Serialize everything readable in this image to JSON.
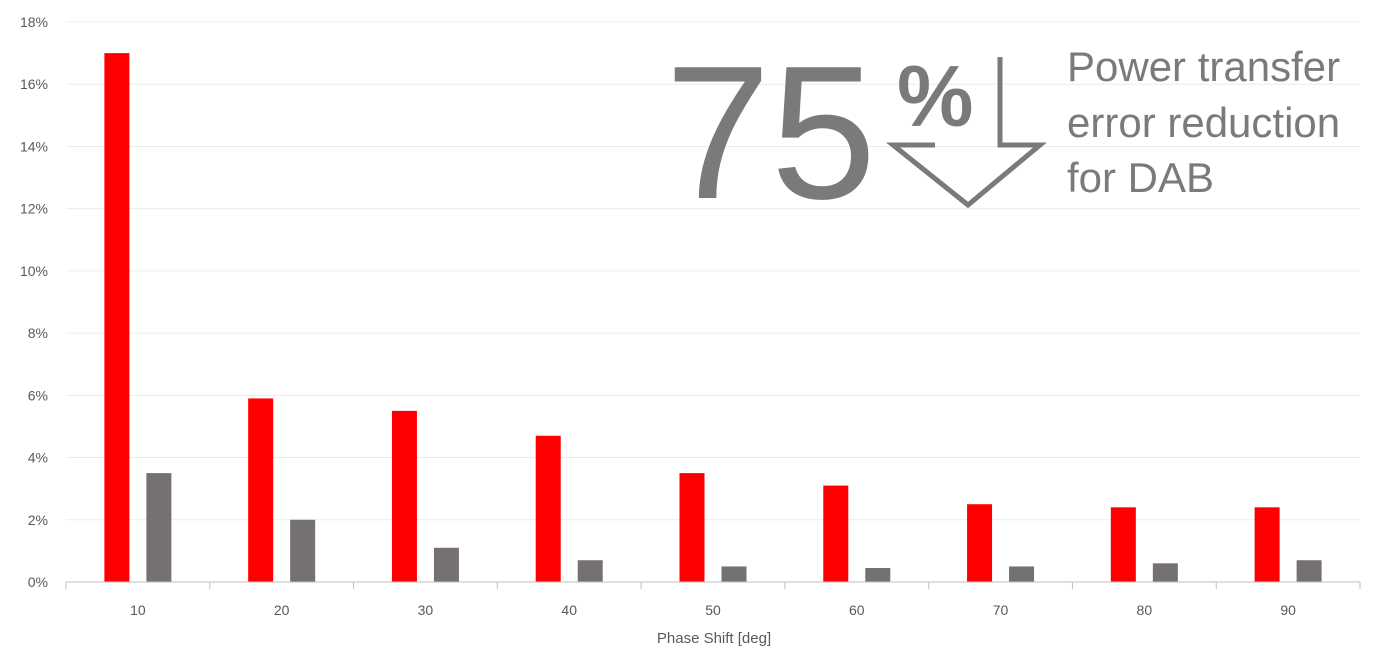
{
  "chart_data": {
    "type": "bar",
    "title": "",
    "xlabel": "Phase Shift [deg]",
    "ylabel": "",
    "categories": [
      "10",
      "20",
      "30",
      "40",
      "50",
      "60",
      "70",
      "80",
      "90"
    ],
    "ylim": [
      0,
      18
    ],
    "y_ticks": [
      "0%",
      "2%",
      "4%",
      "6%",
      "8%",
      "10%",
      "12%",
      "14%",
      "16%",
      "18%"
    ],
    "grid": true,
    "series": [
      {
        "color": "#ff0000",
        "values": [
          17.0,
          5.9,
          5.5,
          4.7,
          3.5,
          3.1,
          2.5,
          2.4,
          2.4
        ]
      },
      {
        "color": "#767171",
        "values": [
          3.5,
          2.0,
          1.1,
          0.7,
          0.5,
          0.45,
          0.5,
          0.6,
          0.7
        ]
      }
    ]
  },
  "callout": {
    "value": "75",
    "unit": "%",
    "arrow_icon": "down-arrow-icon",
    "lines": [
      "Power transfer",
      "error reduction",
      "for DAB"
    ],
    "color": "#7a7a7a"
  }
}
